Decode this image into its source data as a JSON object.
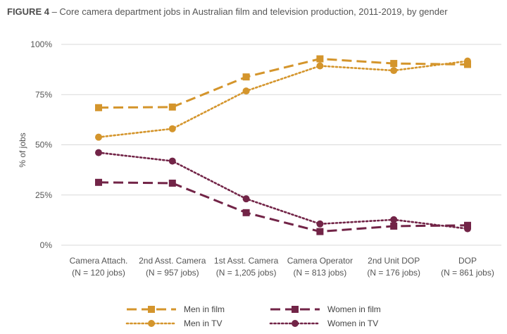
{
  "figure": {
    "label": "FIGURE 4",
    "title": " – Core camera department jobs in Australian film and television production, 2011-2019, by gender"
  },
  "colors": {
    "men": "#D4952C",
    "women": "#722447",
    "grid": "#D9D9D9"
  },
  "chart_data": {
    "type": "line",
    "categories": [
      [
        "Camera Attach.",
        "(N = 120 jobs)"
      ],
      [
        "2nd Asst. Camera",
        "(N = 957 jobs)"
      ],
      [
        "1st Asst. Camera",
        "(N = 1,205 jobs)"
      ],
      [
        "Camera Operator",
        "(N = 813 jobs)"
      ],
      [
        "2nd Unit DOP",
        "(N = 176 jobs)"
      ],
      [
        "DOP",
        "(N = 861 jobs)"
      ]
    ],
    "ylabel": "% of jobs",
    "ylim": [
      0,
      100
    ],
    "yticks": [
      0,
      25,
      50,
      75,
      100
    ],
    "ytick_labels": [
      "0%",
      "25%",
      "50%",
      "75%",
      "100%"
    ],
    "grid": true,
    "legend_position": "bottom",
    "series": [
      {
        "name": "Men in film",
        "color": "#D4952C",
        "dash": "dashed",
        "marker": "square",
        "values": [
          68.5,
          68.8,
          83.8,
          92.8,
          90.5,
          90.0
        ]
      },
      {
        "name": "Men in TV",
        "color": "#D4952C",
        "dash": "dotted",
        "marker": "circle",
        "values": [
          53.8,
          58.0,
          76.8,
          89.3,
          87.0,
          91.7
        ]
      },
      {
        "name": "Women in film",
        "color": "#722447",
        "dash": "dashed",
        "marker": "square",
        "values": [
          31.3,
          30.9,
          16.2,
          6.8,
          9.5,
          9.9
        ]
      },
      {
        "name": "Women in TV",
        "color": "#722447",
        "dash": "dotted",
        "marker": "circle",
        "values": [
          46.1,
          41.9,
          23.1,
          10.6,
          12.7,
          8.2
        ]
      }
    ]
  }
}
